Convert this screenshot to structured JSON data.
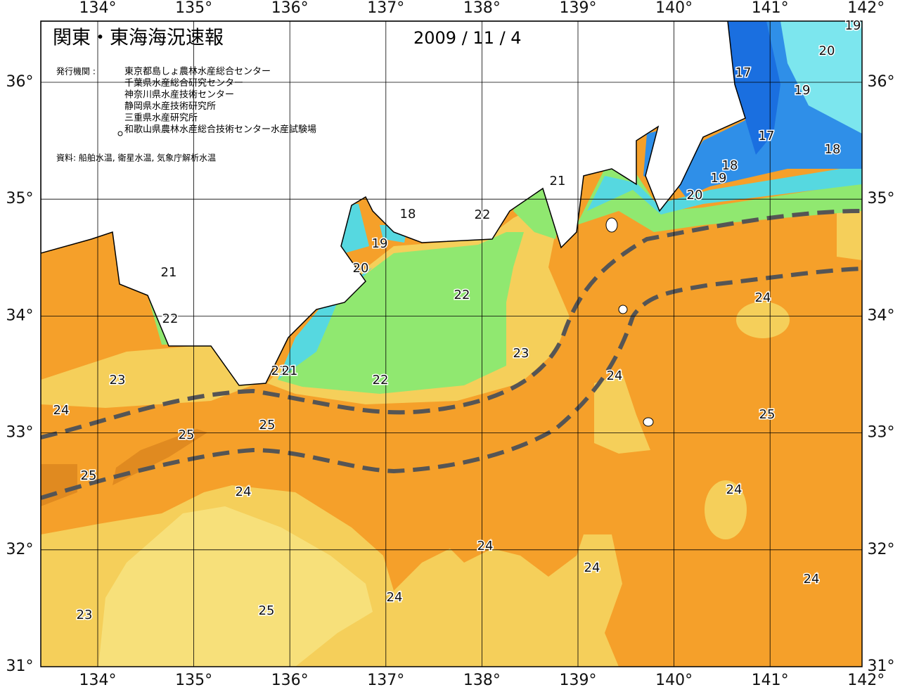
{
  "header": {
    "title": "関東・東海海況速報",
    "date": "2009 / 11 / 4"
  },
  "agencies": {
    "label": "発行機関 :",
    "items": [
      "東京都島しょ農林水産総合センター",
      "千葉県水産総合研究センター",
      "神奈川県水産技術センター",
      "静岡県水産技術研究所",
      "三重県水産研究所",
      "和歌山県農林水産総合技術センター水産試験場"
    ]
  },
  "source": "資料: 船舶水温, 衛星水温, 気象庁解析水温",
  "lon_ticks": [
    {
      "value": 134,
      "label": "134°"
    },
    {
      "value": 135,
      "label": "135°"
    },
    {
      "value": 136,
      "label": "136°"
    },
    {
      "value": 137,
      "label": "137°"
    },
    {
      "value": 138,
      "label": "138°"
    },
    {
      "value": 139,
      "label": "139°"
    },
    {
      "value": 140,
      "label": "140°"
    },
    {
      "value": 141,
      "label": "141°"
    },
    {
      "value": 142,
      "label": "142°"
    }
  ],
  "lat_ticks": [
    {
      "value": 36,
      "label": "36°"
    },
    {
      "value": 35,
      "label": "35°"
    },
    {
      "value": 34,
      "label": "34°"
    },
    {
      "value": 33,
      "label": "33°"
    },
    {
      "value": 32,
      "label": "32°"
    },
    {
      "value": 31,
      "label": "31°"
    }
  ],
  "isotherm_labels": [
    19,
    20,
    17,
    19,
    17,
    18,
    18,
    19,
    20,
    21,
    18,
    22,
    19,
    20,
    21,
    22,
    22,
    24,
    23,
    21,
    21,
    22,
    24,
    23,
    24,
    25,
    25,
    25,
    25,
    24,
    24,
    24,
    24,
    24,
    23,
    25,
    24
  ]
}
